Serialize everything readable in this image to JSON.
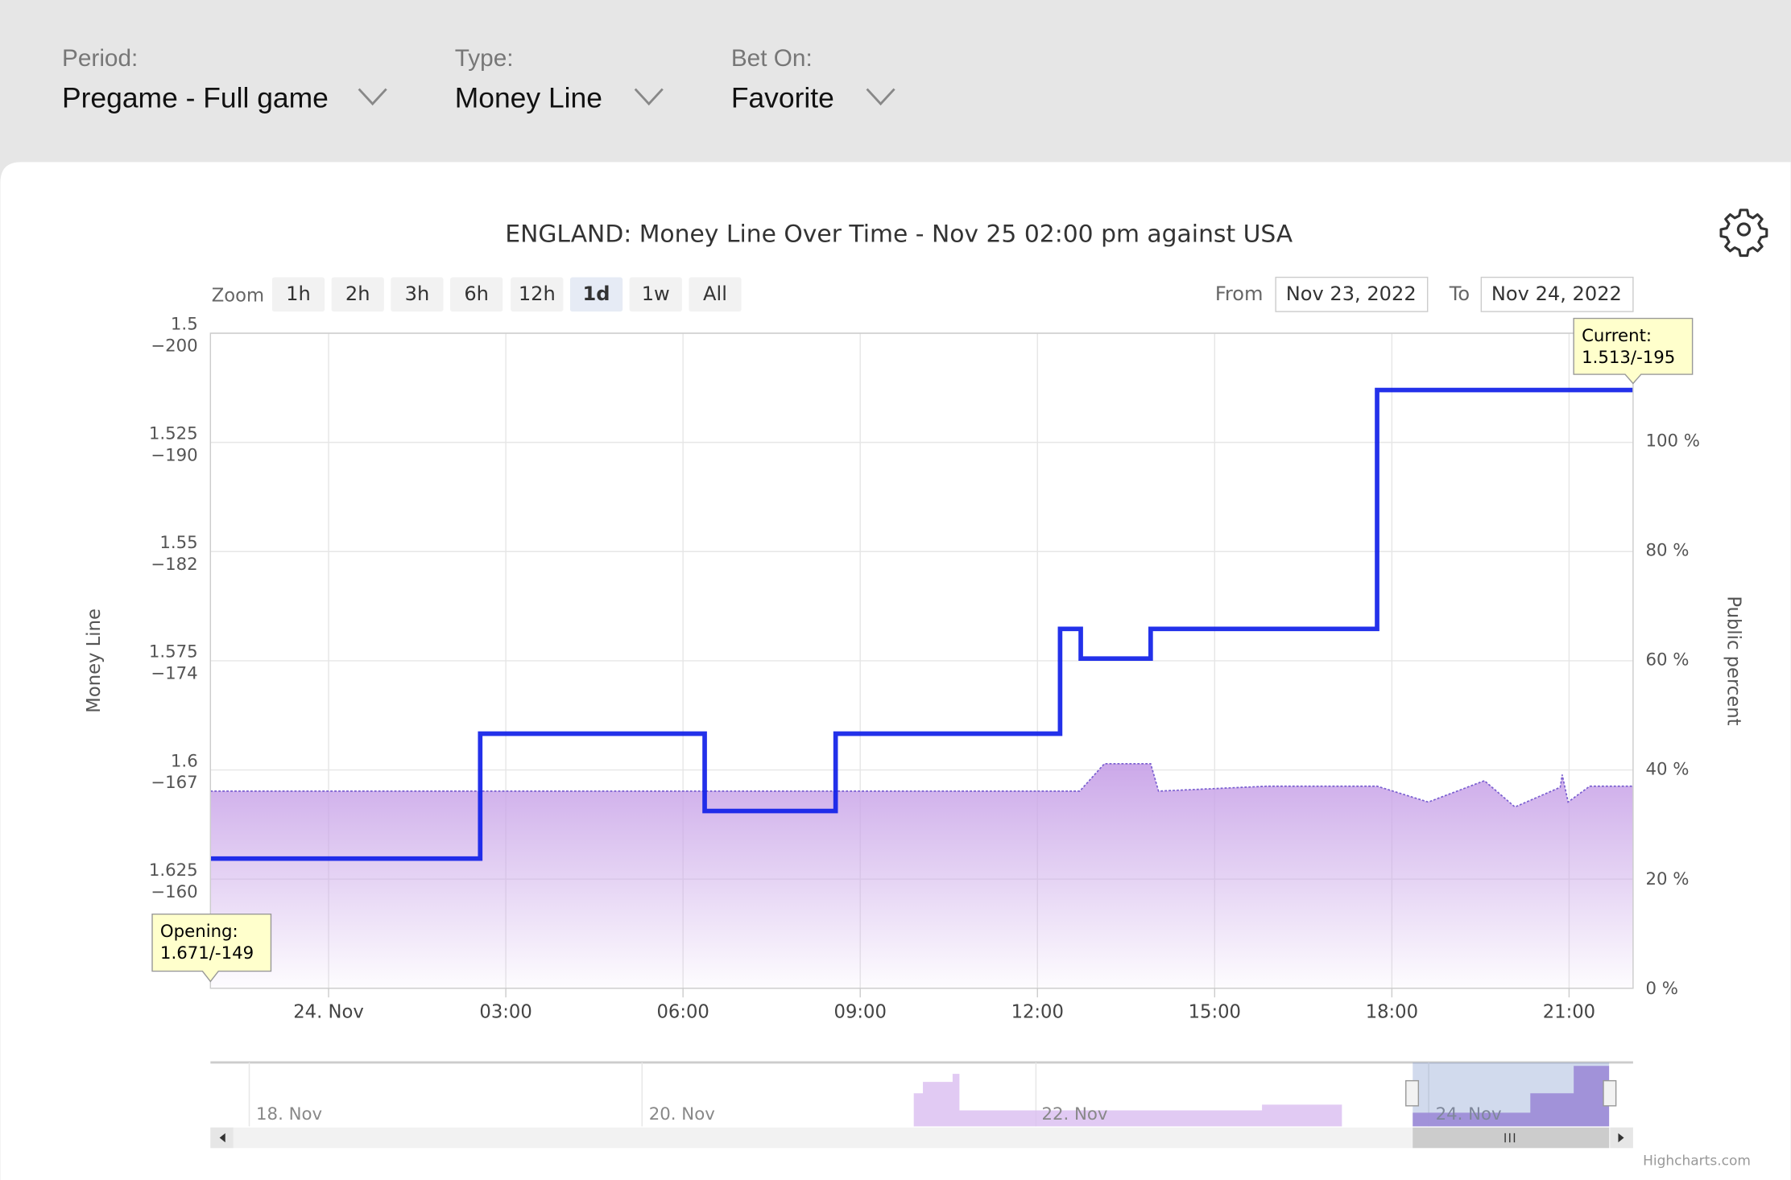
{
  "filters": [
    {
      "label": "Period:",
      "value": "Pregame - Full game"
    },
    {
      "label": "Type:",
      "value": "Money Line"
    },
    {
      "label": "Bet On:",
      "value": "Favorite"
    }
  ],
  "zoom": {
    "label": "Zoom",
    "buttons": [
      "1h",
      "2h",
      "3h",
      "6h",
      "12h",
      "1d",
      "1w",
      "All"
    ],
    "selected": "1d"
  },
  "range": {
    "from_label": "From",
    "from": "Nov 23, 2022",
    "to_label": "To",
    "to": "Nov 24, 2022"
  },
  "chart_data": {
    "type": "line",
    "title": "ENGLAND: Money Line Over Time - Nov 25 02:00 pm against USA",
    "ylabel": "Money Line",
    "y2label": "Public percent",
    "xlim": [
      "2022-11-23T22:00",
      "2022-11-24T22:05"
    ],
    "xticks": [
      {
        "value": "2022-11-24T00:00",
        "label": "24. Nov"
      },
      {
        "value": "2022-11-24T03:00",
        "label": "03:00"
      },
      {
        "value": "2022-11-24T06:00",
        "label": "06:00"
      },
      {
        "value": "2022-11-24T09:00",
        "label": "09:00"
      },
      {
        "value": "2022-11-24T12:00",
        "label": "12:00"
      },
      {
        "value": "2022-11-24T15:00",
        "label": "15:00"
      },
      {
        "value": "2022-11-24T18:00",
        "label": "18:00"
      },
      {
        "value": "2022-11-24T21:00",
        "label": "21:00"
      }
    ],
    "ylim": [
      1.65,
      1.5
    ],
    "yticks": [
      {
        "value": 1.5,
        "label": "1.5\n−200"
      },
      {
        "value": 1.525,
        "label": "1.525\n−190"
      },
      {
        "value": 1.55,
        "label": "1.55\n−182"
      },
      {
        "value": 1.575,
        "label": "1.575\n−174"
      },
      {
        "value": 1.6,
        "label": "1.6\n−167"
      },
      {
        "value": 1.625,
        "label": "1.625\n−160"
      }
    ],
    "y2lim": [
      0,
      119.6
    ],
    "y2ticks": [
      {
        "value": 0,
        "label": "0 %"
      },
      {
        "value": 20,
        "label": "20 %"
      },
      {
        "value": 40,
        "label": "40 %"
      },
      {
        "value": 60,
        "label": "60 %"
      },
      {
        "value": 80,
        "label": "80 %"
      },
      {
        "value": 100,
        "label": "100 %"
      }
    ],
    "grid": true,
    "series": [
      {
        "name": "Money Line",
        "color": "#1020e8",
        "step": true,
        "x": [
          "2022-11-23T22:00",
          "2022-11-24T02:34",
          "2022-11-24T06:22",
          "2022-11-24T08:35",
          "2022-11-24T12:23",
          "2022-11-24T12:44",
          "2022-11-24T13:55",
          "2022-11-24T17:45",
          "2022-11-24T22:05"
        ],
        "values": [
          1.6203,
          1.5917,
          1.6094,
          1.5917,
          1.5677,
          1.5745,
          1.5677,
          1.513,
          1.513
        ]
      },
      {
        "name": "Public percent",
        "color": "#b98ce0",
        "axis": "y2",
        "area": true,
        "x": [
          "2022-11-23T22:00",
          "2022-11-24T12:43",
          "2022-11-24T13:08",
          "2022-11-24T13:55",
          "2022-11-24T14:03",
          "2022-11-24T15:54",
          "2022-11-24T17:45",
          "2022-11-24T18:37",
          "2022-11-24T19:34",
          "2022-11-24T20:05",
          "2022-11-24T20:51",
          "2022-11-24T20:53",
          "2022-11-24T20:59",
          "2022-11-24T21:21",
          "2022-11-24T22:05"
        ],
        "values": [
          36.0,
          36.0,
          41.0,
          41.0,
          36.0,
          36.9,
          36.9,
          34.0,
          37.9,
          33.1,
          36.7,
          39.0,
          34.0,
          36.9,
          36.9
        ]
      }
    ],
    "annotations": [
      {
        "title": "Opening:",
        "text": "1.671/-149"
      },
      {
        "title": "Current:",
        "text": "1.513/-195"
      }
    ],
    "navigator_labels": [
      "18. Nov",
      "20. Nov",
      "22. Nov",
      "24. Nov"
    ],
    "credit": "Highcharts.com"
  }
}
